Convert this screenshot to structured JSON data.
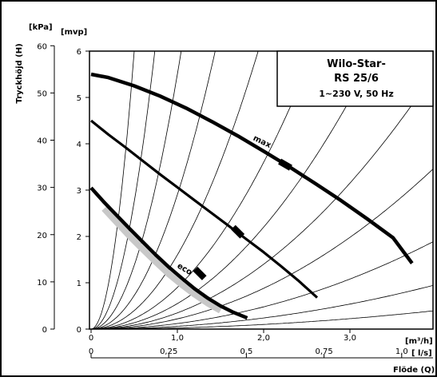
{
  "chart_data": {
    "type": "line",
    "title_box": {
      "line1": "Wilo-Star-",
      "line2": "RS 25/6",
      "line3": "1~230 V, 50 Hz"
    },
    "y_axis_title": "Tryckhöjd (H)",
    "y_unit_kpa": "[kPa]",
    "y_unit_mvp": "[mvp]",
    "x_unit_m3h": "[m³/h]",
    "x_unit_ls": "[ l/s]",
    "x_axis_title": "Flöde (Q)",
    "kpa_ticks": [
      "0",
      "10",
      "20",
      "30",
      "40",
      "50",
      "60"
    ],
    "mvp_ticks": [
      "0",
      "1",
      "2",
      "3",
      "4",
      "5",
      "6"
    ],
    "m3h_ticks": [
      "0",
      "1,0",
      "2,0",
      "3,0"
    ],
    "ls_ticks": [
      "0",
      "0,25",
      "0,5",
      "0,75",
      "1,0"
    ],
    "m3h_tick_values": [
      0,
      1.0,
      2.0,
      3.0
    ],
    "ls_tick_values": [
      0,
      0.25,
      0.5,
      0.75,
      1.0
    ],
    "xlim_m3h": [
      0,
      3.8
    ],
    "ylim_mvp": [
      0,
      6
    ],
    "grid": false,
    "series": [
      {
        "name": "max",
        "style": "thick",
        "x": [
          0,
          0.2,
          0.5,
          0.8,
          1.1,
          1.4,
          1.7,
          2.0,
          2.3,
          2.6,
          2.9,
          3.2,
          3.5,
          3.72
        ],
        "y": [
          5.5,
          5.43,
          5.25,
          5.03,
          4.77,
          4.48,
          4.17,
          3.84,
          3.5,
          3.14,
          2.77,
          2.38,
          1.97,
          1.42
        ]
      },
      {
        "name": "",
        "style": "medium",
        "x": [
          0,
          0.2,
          0.4,
          0.6,
          0.8,
          1.0,
          1.2,
          1.4,
          1.6,
          1.8,
          2.0,
          2.2,
          2.4,
          2.62
        ],
        "y": [
          4.5,
          4.2,
          3.92,
          3.63,
          3.34,
          3.06,
          2.78,
          2.5,
          2.22,
          1.94,
          1.66,
          1.36,
          1.05,
          0.68
        ]
      },
      {
        "name": "eco",
        "style": "thick",
        "x": [
          0,
          0.15,
          0.3,
          0.45,
          0.6,
          0.75,
          0.9,
          1.05,
          1.2,
          1.35,
          1.5,
          1.65,
          1.81
        ],
        "y": [
          3.05,
          2.74,
          2.45,
          2.16,
          1.88,
          1.6,
          1.34,
          1.1,
          0.87,
          0.67,
          0.5,
          0.36,
          0.24
        ]
      },
      {
        "name": "",
        "style": "band",
        "x": [
          0.15,
          0.3,
          0.45,
          0.6,
          0.75,
          0.9,
          1.05,
          1.2,
          1.35,
          1.5
        ],
        "y": [
          2.6,
          2.3,
          2.0,
          1.72,
          1.45,
          1.19,
          0.96,
          0.75,
          0.56,
          0.4
        ]
      }
    ],
    "system_curve_k": [
      0.025,
      0.06,
      0.12,
      0.22,
      0.35,
      0.55,
      0.9,
      1.6,
      2.9,
      5.5,
      11,
      24
    ],
    "annotations": [
      {
        "text": "max",
        "x": 1.97,
        "y": 4.0,
        "angle": 26
      },
      {
        "text": "eco",
        "x": 1.07,
        "y": 1.25,
        "angle": 30
      }
    ],
    "markers": [
      {
        "x": 2.25,
        "y": 3.55,
        "angle": 30
      },
      {
        "x": 1.7,
        "y": 2.1,
        "angle": 45
      },
      {
        "x": 1.26,
        "y": 1.2,
        "angle": 45
      }
    ]
  }
}
